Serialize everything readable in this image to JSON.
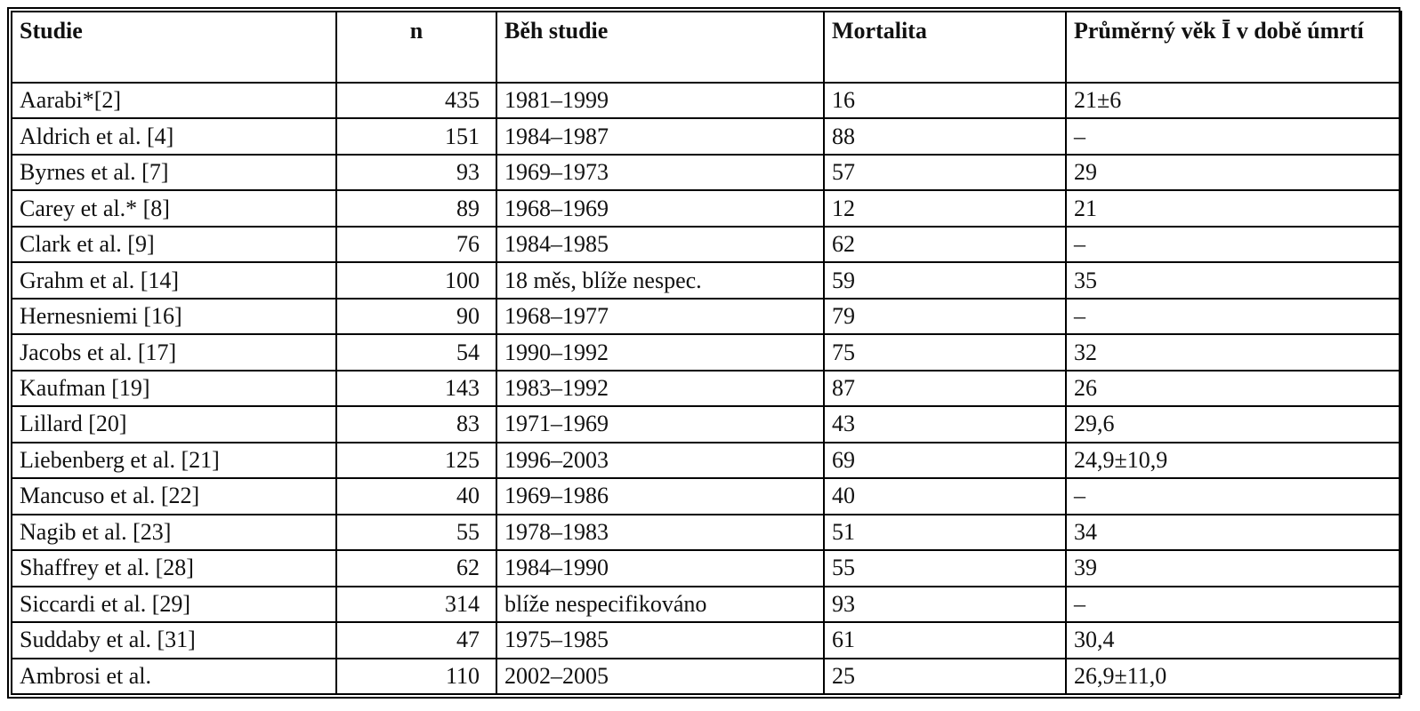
{
  "table": {
    "headers": {
      "study": "Studie",
      "n": "n",
      "period": "Běh studie",
      "mortality": "Mortalita",
      "age": "Průměrný věk Ī v době úmrtí"
    },
    "rows": [
      {
        "study": "Aarabi*[2]",
        "n": "435",
        "period": "1981–1999",
        "mortality": "16",
        "age": "21±6"
      },
      {
        "study": "Aldrich et al. [4]",
        "n": "151",
        "period": "1984–1987",
        "mortality": "88",
        "age": "–"
      },
      {
        "study": "Byrnes et al. [7]",
        "n": "93",
        "period": "1969–1973",
        "mortality": "57",
        "age": "29"
      },
      {
        "study": "Carey et al.* [8]",
        "n": "89",
        "period": "1968–1969",
        "mortality": "12",
        "age": "21"
      },
      {
        "study": "Clark et al. [9]",
        "n": "76",
        "period": "1984–1985",
        "mortality": "62",
        "age": "–"
      },
      {
        "study": "Grahm et al. [14]",
        "n": "100",
        "period": "18 měs, blíže nespec.",
        "mortality": "59",
        "age": "35"
      },
      {
        "study": "Hernesniemi [16]",
        "n": "90",
        "period": "1968–1977",
        "mortality": "79",
        "age": "–"
      },
      {
        "study": "Jacobs et al. [17]",
        "n": "54",
        "period": "1990–1992",
        "mortality": "75",
        "age": "32"
      },
      {
        "study": "Kaufman [19]",
        "n": "143",
        "period": "1983–1992",
        "mortality": "87",
        "age": "26"
      },
      {
        "study": "Lillard [20]",
        "n": "83",
        "period": "1971–1969",
        "mortality": "43",
        "age": "29,6"
      },
      {
        "study": "Liebenberg et al. [21]",
        "n": "125",
        "period": "1996–2003",
        "mortality": "69",
        "age": "24,9±10,9"
      },
      {
        "study": "Mancuso et al. [22]",
        "n": "40",
        "period": "1969–1986",
        "mortality": "40",
        "age": "–"
      },
      {
        "study": "Nagib et al. [23]",
        "n": "55",
        "period": "1978–1983",
        "mortality": "51",
        "age": "34"
      },
      {
        "study": "Shaffrey et al. [28]",
        "n": "62",
        "period": "1984–1990",
        "mortality": "55",
        "age": "39"
      },
      {
        "study": "Siccardi et al. [29]",
        "n": "314",
        "period": "blíže nespecifikováno",
        "mortality": "93",
        "age": "–"
      },
      {
        "study": "Suddaby et al. [31]",
        "n": "47",
        "period": "1975–1985",
        "mortality": "61",
        "age": "30,4"
      },
      {
        "study": "Ambrosi et al.",
        "n": "110",
        "period": "2002–2005",
        "mortality": "25",
        "age": "26,9±11,0"
      }
    ]
  }
}
